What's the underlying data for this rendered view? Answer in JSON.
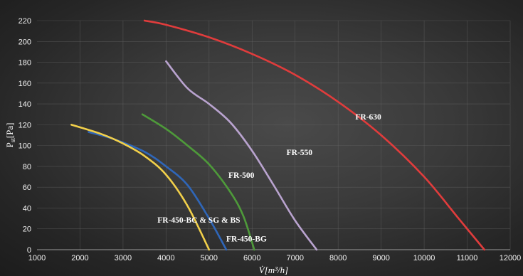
{
  "chart_data": {
    "type": "line",
    "title": "",
    "xlabel": "V̇[m³/h]",
    "ylabel": "Pst[Pa]",
    "ylabel_main": "P",
    "ylabel_sub": "st",
    "ylabel_unit": "[Pa]",
    "xlim": [
      1000,
      12000
    ],
    "ylim": [
      0,
      220
    ],
    "xticks": [
      1000,
      2000,
      3000,
      4000,
      5000,
      6000,
      7000,
      8000,
      9000,
      10000,
      11000,
      12000
    ],
    "yticks": [
      0,
      20,
      40,
      60,
      80,
      100,
      120,
      140,
      160,
      180,
      200,
      220
    ],
    "grid": true,
    "legend": "none",
    "series": [
      {
        "name": "FR-630",
        "color": "#e03c3c",
        "points": [
          [
            3500,
            220
          ],
          [
            4000,
            216
          ],
          [
            5000,
            204
          ],
          [
            6000,
            188
          ],
          [
            7000,
            168
          ],
          [
            8000,
            142
          ],
          [
            9000,
            110
          ],
          [
            10000,
            70
          ],
          [
            10800,
            30
          ],
          [
            11400,
            0
          ]
        ]
      },
      {
        "name": "FR-550",
        "color": "#b9a3cf",
        "points": [
          [
            4000,
            181
          ],
          [
            4500,
            155
          ],
          [
            5000,
            140
          ],
          [
            5500,
            122
          ],
          [
            6000,
            95
          ],
          [
            6500,
            62
          ],
          [
            7000,
            28
          ],
          [
            7500,
            0
          ]
        ]
      },
      {
        "name": "FR-500",
        "color": "#4e9a3a",
        "points": [
          [
            3450,
            130
          ],
          [
            4000,
            116
          ],
          [
            4500,
            100
          ],
          [
            5000,
            82
          ],
          [
            5500,
            55
          ],
          [
            5800,
            32
          ],
          [
            6050,
            0
          ]
        ]
      },
      {
        "name": "FR-450-BG",
        "color": "#2f66b8",
        "points": [
          [
            2200,
            113
          ],
          [
            2800,
            106
          ],
          [
            3500,
            94
          ],
          [
            4000,
            80
          ],
          [
            4500,
            62
          ],
          [
            5000,
            30
          ],
          [
            5400,
            0
          ]
        ]
      },
      {
        "name": "FR-450-BC & SG & BS",
        "color": "#f2d04a",
        "points": [
          [
            1800,
            120
          ],
          [
            2500,
            111
          ],
          [
            3000,
            102
          ],
          [
            3500,
            90
          ],
          [
            4000,
            72
          ],
          [
            4500,
            42
          ],
          [
            5000,
            0
          ]
        ]
      }
    ],
    "annotations": [
      {
        "text": "FR-630",
        "x": 8400,
        "y": 125
      },
      {
        "text": "FR-550",
        "x": 6800,
        "y": 91
      },
      {
        "text": "FR-500",
        "x": 5450,
        "y": 69
      },
      {
        "text": "FR-450-BG",
        "x": 5400,
        "y": 8
      },
      {
        "text": "FR-450-BC & SG & BS",
        "x": 3800,
        "y": 26
      }
    ]
  }
}
